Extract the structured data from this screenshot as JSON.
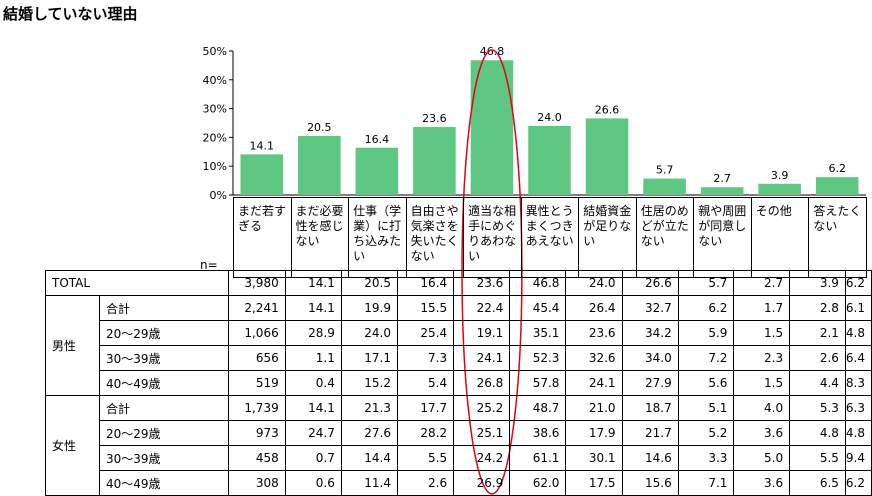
{
  "title": "結婚していない理由",
  "n_label": "n=",
  "chart_data": {
    "type": "bar",
    "categories": [
      "まだ若すぎる",
      "まだ必要性を感じない",
      "仕事（学業）に打ち込みたい",
      "自由さや気楽さを失いたくない",
      "適当な相手にめぐりあわない",
      "異性とうまくつきあえない",
      "結婚資金が足りない",
      "住居のめどが立たない",
      "親や周囲が同意しない",
      "その他",
      "答えたくない"
    ],
    "values": [
      14.1,
      20.5,
      16.4,
      23.6,
      46.8,
      24.0,
      26.6,
      5.7,
      2.7,
      3.9,
      6.2
    ],
    "value_labels": [
      "14.1",
      "20.5",
      "16.4",
      "23.6",
      "46.8",
      "24.0",
      "26.6",
      "5.7",
      "2.7",
      "3.9",
      "6.2"
    ],
    "yticks": [
      "0%",
      "10%",
      "20%",
      "30%",
      "40%",
      "50%"
    ],
    "ylim": [
      0,
      50
    ],
    "bar_color": "#5ec882",
    "highlight_color": "#e60012",
    "highlight_index": 4
  },
  "table": {
    "rows": [
      {
        "group": "TOTAL",
        "sub": "",
        "n": "3,980",
        "values": [
          "14.1",
          "20.5",
          "16.4",
          "23.6",
          "46.8",
          "24.0",
          "26.6",
          "5.7",
          "2.7",
          "3.9",
          "6.2"
        ]
      },
      {
        "group": "男性",
        "sub": "合計",
        "n": "2,241",
        "values": [
          "14.1",
          "19.9",
          "15.5",
          "22.4",
          "45.4",
          "26.4",
          "32.7",
          "6.2",
          "1.7",
          "2.8",
          "6.1"
        ]
      },
      {
        "group": "",
        "sub": "20～29歳",
        "n": "1,066",
        "values": [
          "28.9",
          "24.0",
          "25.4",
          "19.1",
          "35.1",
          "23.6",
          "34.2",
          "5.9",
          "1.5",
          "2.1",
          "4.8"
        ]
      },
      {
        "group": "",
        "sub": "30～39歳",
        "n": "656",
        "values": [
          "1.1",
          "17.1",
          "7.3",
          "24.1",
          "52.3",
          "32.6",
          "34.0",
          "7.2",
          "2.3",
          "2.6",
          "6.4"
        ]
      },
      {
        "group": "",
        "sub": "40～49歳",
        "n": "519",
        "values": [
          "0.4",
          "15.2",
          "5.4",
          "26.8",
          "57.8",
          "24.1",
          "27.9",
          "5.6",
          "1.5",
          "4.4",
          "8.3"
        ]
      },
      {
        "group": "女性",
        "sub": "合計",
        "n": "1,739",
        "values": [
          "14.1",
          "21.3",
          "17.7",
          "25.2",
          "48.7",
          "21.0",
          "18.7",
          "5.1",
          "4.0",
          "5.3",
          "6.3"
        ]
      },
      {
        "group": "",
        "sub": "20～29歳",
        "n": "973",
        "values": [
          "24.7",
          "27.6",
          "28.2",
          "25.1",
          "38.6",
          "17.9",
          "21.7",
          "5.2",
          "3.6",
          "4.8",
          "4.8"
        ]
      },
      {
        "group": "",
        "sub": "30～39歳",
        "n": "458",
        "values": [
          "0.7",
          "14.4",
          "5.5",
          "24.2",
          "61.1",
          "30.1",
          "14.6",
          "3.3",
          "5.0",
          "5.5",
          "9.4"
        ]
      },
      {
        "group": "",
        "sub": "40～49歳",
        "n": "308",
        "values": [
          "0.6",
          "11.4",
          "2.6",
          "26.9",
          "62.0",
          "17.5",
          "15.6",
          "7.1",
          "3.6",
          "6.5",
          "6.2"
        ]
      }
    ],
    "header_lines": [
      [
        "まだ若す",
        "ぎる"
      ],
      [
        "まだ必要",
        "性を感じ",
        "ない"
      ],
      [
        "仕事（学",
        "業）に打",
        "ち込みた",
        "い"
      ],
      [
        "自由さや",
        "気楽さを",
        "失いたく",
        "ない"
      ],
      [
        "適当な相",
        "手にめぐ",
        "りあわな",
        "い"
      ],
      [
        "異性とう",
        "まくつき",
        "あえない"
      ],
      [
        "結婚資金",
        "が足りな",
        "い"
      ],
      [
        "住居のめ",
        "どが立た",
        "ない"
      ],
      [
        "親や周囲",
        "が同意し",
        "ない"
      ],
      [
        "その他"
      ],
      [
        "答えたく",
        "ない"
      ]
    ]
  }
}
